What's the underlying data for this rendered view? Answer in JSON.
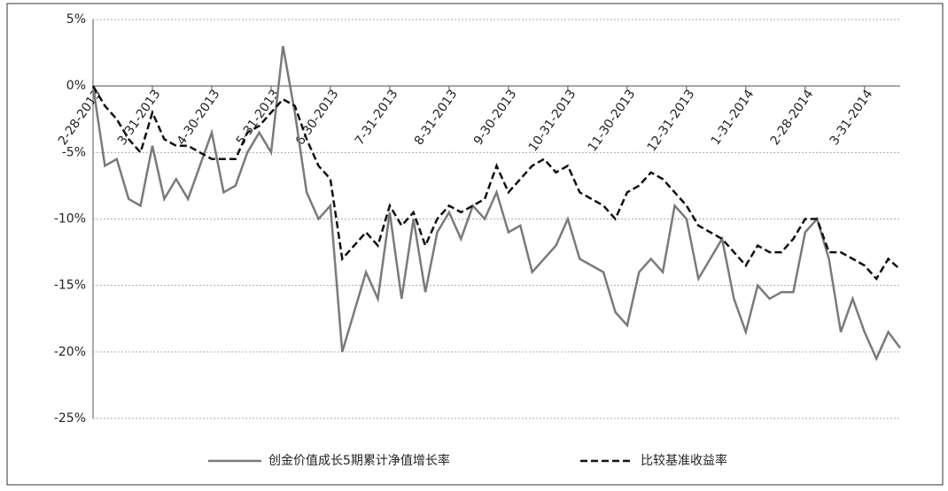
{
  "chart_data": {
    "type": "line",
    "categories": [
      "2-28-2013",
      null,
      null,
      null,
      null,
      "3-31-2013",
      null,
      null,
      null,
      null,
      "4-30-2013",
      null,
      null,
      null,
      null,
      "5-31-2013",
      null,
      null,
      null,
      null,
      "6-30-2013",
      null,
      null,
      null,
      null,
      "7-31-2013",
      null,
      null,
      null,
      null,
      "8-31-2013",
      null,
      null,
      null,
      null,
      "9-30-2013",
      null,
      null,
      null,
      null,
      "10-31-2013",
      null,
      null,
      null,
      null,
      "11-30-2013",
      null,
      null,
      null,
      null,
      "12-31-2013",
      null,
      null,
      null,
      null,
      "1-31-2014",
      null,
      null,
      null,
      null,
      "2-28-2014",
      null,
      null,
      null,
      null,
      "3-31-2014",
      null,
      null,
      null
    ],
    "series": [
      {
        "name": "创金价值成长5期累计净值增长率",
        "color": "#7a7a7a",
        "dash": false,
        "values": [
          0,
          -6,
          -5.5,
          -8.5,
          -9,
          -4.5,
          -8.5,
          -7,
          -8.5,
          -6,
          -3.5,
          -8,
          -7.5,
          -5,
          -3.5,
          -5,
          3,
          -2,
          -8,
          -10,
          -9,
          -20,
          -17,
          -14,
          -16,
          -9.5,
          -16,
          -10,
          -15.5,
          -11,
          -9.5,
          -11.5,
          -9,
          -10,
          -8,
          -11,
          -10.5,
          -14,
          -13,
          -12,
          -10,
          -13,
          -13.5,
          -14,
          -17,
          -18,
          -14,
          -13,
          -14,
          -9,
          -10,
          -14.5,
          -13,
          -11.5,
          -16,
          -18.5,
          -15,
          -16,
          -15.5,
          -15.5,
          -11,
          -10,
          -13,
          -18.5,
          -16,
          -18.5,
          -20.5,
          -18.5,
          -19.7
        ]
      },
      {
        "name": "比较基准收益率",
        "color": "#111111",
        "dash": true,
        "values": [
          0,
          -1.5,
          -2.5,
          -4,
          -5,
          -2,
          -4,
          -4.5,
          -4.5,
          -5,
          -5.5,
          -5.5,
          -5.5,
          -3.5,
          -3,
          -2,
          -1,
          -1.5,
          -4,
          -6,
          -7,
          -13,
          -12,
          -11,
          -12,
          -9,
          -10.5,
          -9.5,
          -12,
          -10,
          -9,
          -9.5,
          -9,
          -8.5,
          -6,
          -8,
          -7,
          -6,
          -5.5,
          -6.5,
          -6,
          -8,
          -8.5,
          -9,
          -10,
          -8,
          -7.5,
          -6.5,
          -7,
          -8,
          -9,
          -10.5,
          -11,
          -11.5,
          -12.5,
          -13.5,
          -12,
          -12.5,
          -12.5,
          -11.5,
          -10,
          -10,
          -12.5,
          -12.5,
          -13,
          -13.5,
          -14.5,
          -13,
          -13.8
        ]
      }
    ],
    "ylim": [
      -25,
      5
    ],
    "yticks": [
      {
        "value": 5,
        "label": "5%"
      },
      {
        "value": 0,
        "label": "0%"
      },
      {
        "value": -5,
        "label": "-5%"
      },
      {
        "value": -10,
        "label": "-10%"
      },
      {
        "value": -15,
        "label": "-15%"
      },
      {
        "value": -20,
        "label": "-20%"
      },
      {
        "value": -25,
        "label": "-25%"
      }
    ],
    "grid": true
  }
}
